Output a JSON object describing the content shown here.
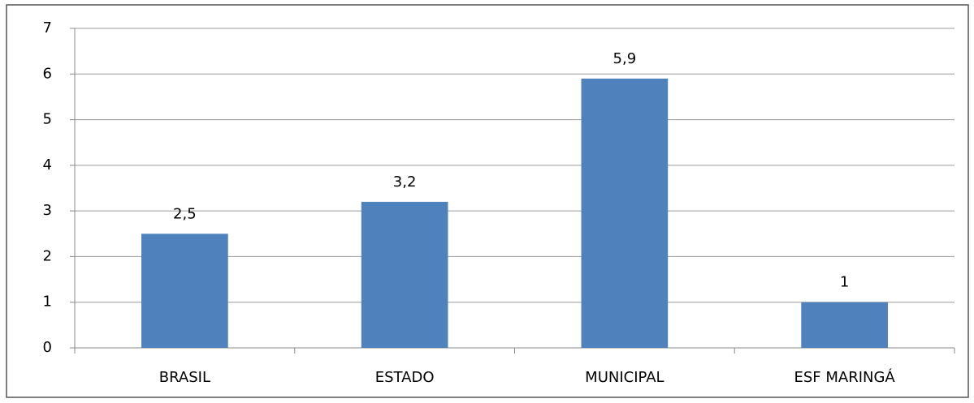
{
  "chart_data": {
    "type": "bar",
    "categories": [
      "BRASIL",
      "ESTADO",
      "MUNICIPAL",
      "ESF MARINGÁ"
    ],
    "values": [
      2.5,
      3.2,
      5.9,
      1
    ],
    "value_labels": [
      "2,5",
      "3,2",
      "5,9",
      "1"
    ],
    "color": "#4f81bd",
    "ylim": [
      0,
      7
    ],
    "yticks": [
      0,
      1,
      2,
      3,
      4,
      5,
      6,
      7
    ],
    "grid": true
  }
}
